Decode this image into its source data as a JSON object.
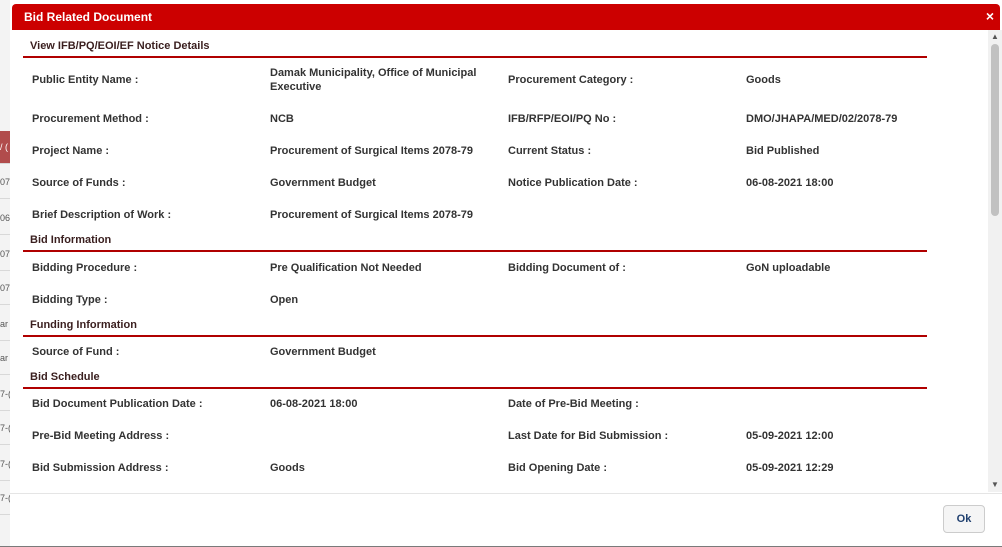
{
  "background": {
    "items": [
      {
        "text": "/ (",
        "red": true
      },
      {
        "text": "07",
        "red": false
      },
      {
        "text": "06",
        "red": false
      },
      {
        "text": "07",
        "red": false
      },
      {
        "text": "07",
        "red": false
      },
      {
        "text": "ar",
        "red": false
      },
      {
        "text": "ar",
        "red": false
      },
      {
        "text": "7-(",
        "red": false
      },
      {
        "text": "7-(",
        "red": false
      },
      {
        "text": "7-(",
        "red": false
      },
      {
        "text": "7-(",
        "red": false
      }
    ]
  },
  "modal": {
    "title": "Bid Related Document",
    "close_symbol": "×",
    "ok_label": "Ok",
    "header_color": "#cc0000"
  },
  "sections": [
    {
      "heading": "View IFB/PQ/EOI/EF Notice Details",
      "rows": [
        [
          "Public Entity Name :",
          "Damak Municipality, Office of Municipal Executive",
          "Procurement Category :",
          "Goods"
        ],
        [
          "Procurement Method :",
          "NCB",
          "IFB/RFP/EOI/PQ No :",
          "DMO/JHAPA/MED/02/2078-79"
        ],
        [
          "Project Name :",
          "Procurement of Surgical Items 2078-79",
          "Current Status :",
          "Bid Published"
        ],
        [
          "Source of Funds :",
          "Government Budget",
          "Notice Publication Date :",
          "06-08-2021 18:00"
        ],
        [
          "Brief Description of Work :",
          "Procurement of Surgical Items 2078-79",
          "",
          ""
        ]
      ]
    },
    {
      "heading": "Bid Information",
      "rows": [
        [
          "Bidding Procedure :",
          "Pre Qualification Not Needed",
          "Bidding Document of :",
          "GoN uploadable"
        ],
        [
          "Bidding Type :",
          "Open",
          "",
          ""
        ]
      ]
    },
    {
      "heading": "Funding Information",
      "rows": [
        [
          "Source of Fund :",
          "Government Budget",
          "",
          ""
        ]
      ]
    },
    {
      "heading": "Bid Schedule",
      "rows": [
        [
          "Bid Document Publication Date :",
          "06-08-2021 18:00",
          "Date of Pre-Bid Meeting :",
          ""
        ],
        [
          "Pre-Bid Meeting Address :",
          "",
          "Last Date for Bid Submission :",
          "05-09-2021 12:00"
        ],
        [
          "Bid Submission Address :",
          "Goods",
          "Bid Opening Date :",
          "05-09-2021 12:29"
        ]
      ]
    }
  ]
}
